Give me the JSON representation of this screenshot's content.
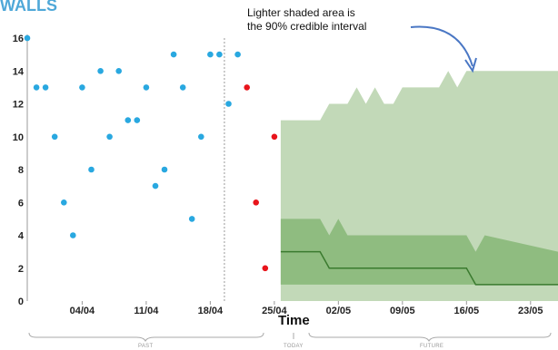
{
  "chart_data": {
    "type": "scatter",
    "title": "WALLS",
    "xlabel": "Time",
    "ylabel": "",
    "ylim": [
      0,
      16
    ],
    "yticks": [
      0,
      2,
      4,
      6,
      8,
      10,
      12,
      14,
      16
    ],
    "xlim": [
      "2024-03-29",
      "2024-05-26"
    ],
    "xtick_labels": [
      "04/04",
      "11/04",
      "18/04",
      "25/04",
      "02/05",
      "09/05",
      "16/05",
      "23/05"
    ],
    "xtick_dates": [
      "2024-04-04",
      "2024-04-11",
      "2024-04-18",
      "2024-04-25",
      "2024-05-02",
      "2024-05-09",
      "2024-05-16",
      "2024-05-23"
    ],
    "today": "2024-04-26",
    "annotation": "Lighter shaded area is the 90% credible interval",
    "period_labels": {
      "past": "PAST",
      "today": "TODAY",
      "future": "FUTURE"
    },
    "colors": {
      "observed": "#29a8e0",
      "highlighted": "#e8141b",
      "interval_90": "#c2d9b8",
      "interval_inner": "#8fbc80",
      "median_line": "#3a7a2e",
      "title": "#4fa8d8"
    },
    "series": [
      {
        "values_x": [
          "2024-03-29",
          "2024-03-30",
          "2024-03-31",
          "2024-04-01",
          "2024-04-02",
          "2024-04-03",
          "2024-04-04",
          "2024-04-05",
          "2024-04-06",
          "2024-04-07",
          "2024-04-08",
          "2024-04-09",
          "2024-04-10",
          "2024-04-11",
          "2024-04-12",
          "2024-04-13",
          "2024-04-14",
          "2024-04-15",
          "2024-04-16",
          "2024-04-17",
          "2024-04-18",
          "2024-04-19",
          "2024-04-20",
          "2024-04-21"
        ],
        "values_y": [
          16,
          13,
          13,
          10,
          6,
          4,
          13,
          8,
          14,
          10,
          14,
          11,
          11,
          13,
          7,
          8,
          15,
          13,
          5,
          10,
          15,
          15,
          12,
          15
        ],
        "color": "observed"
      },
      {
        "values_x": [
          "2024-04-22",
          "2024-04-23",
          "2024-04-24",
          "2024-04-25"
        ],
        "values_y": [
          13,
          6,
          2,
          10
        ],
        "color": "highlighted"
      }
    ],
    "forecast": {
      "x": [
        "2024-04-26",
        "2024-04-30",
        "2024-05-01",
        "2024-05-02",
        "2024-05-03",
        "2024-05-04",
        "2024-05-05",
        "2024-05-06",
        "2024-05-07",
        "2024-05-08",
        "2024-05-09",
        "2024-05-10",
        "2024-05-11",
        "2024-05-12",
        "2024-05-13",
        "2024-05-14",
        "2024-05-15",
        "2024-05-16",
        "2024-05-17",
        "2024-05-18",
        "2024-05-26"
      ],
      "upper_90": [
        11,
        11,
        12,
        12,
        12,
        13,
        12,
        13,
        12,
        12,
        13,
        13,
        13,
        13,
        13,
        14,
        13,
        14,
        14,
        14,
        14
      ],
      "lower_90": [
        0,
        0,
        0,
        0,
        0,
        0,
        0,
        0,
        0,
        0,
        0,
        0,
        0,
        0,
        0,
        0,
        0,
        0,
        0,
        0,
        0
      ],
      "upper_inner": [
        5,
        5,
        4,
        5,
        4,
        4,
        4,
        4,
        4,
        4,
        4,
        4,
        4,
        4,
        4,
        4,
        4,
        4,
        3,
        4,
        3
      ],
      "lower_inner": [
        1,
        1,
        1,
        1,
        1,
        1,
        1,
        1,
        1,
        1,
        1,
        1,
        1,
        1,
        1,
        1,
        1,
        1,
        1,
        1,
        1
      ],
      "median": [
        3,
        3,
        2,
        2,
        2,
        2,
        2,
        2,
        2,
        2,
        2,
        2,
        2,
        2,
        2,
        2,
        2,
        2,
        1,
        1,
        1
      ]
    }
  }
}
